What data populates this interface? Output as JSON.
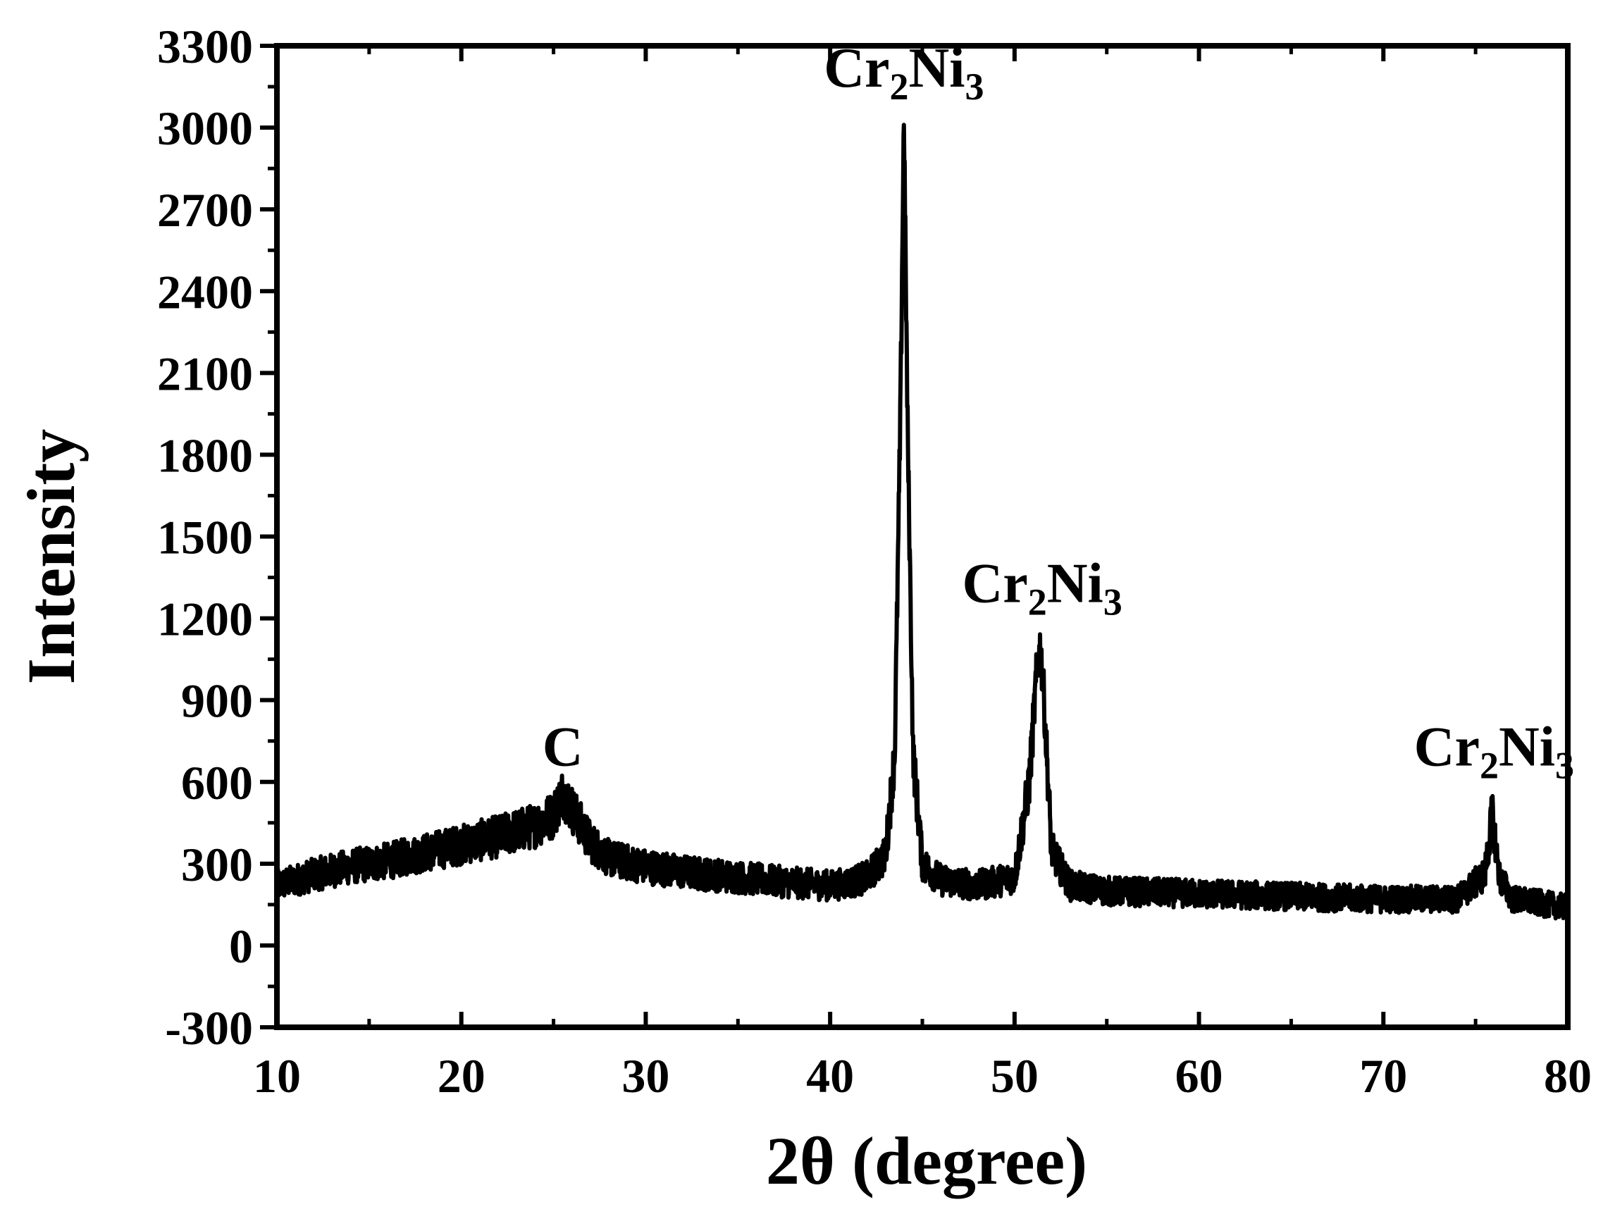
{
  "chart_data": {
    "type": "line",
    "title": "",
    "xlabel": "2θ (degree)",
    "ylabel": "Intensity",
    "xlim": [
      10,
      80
    ],
    "ylim": [
      -300,
      3300
    ],
    "x_ticks": [
      10,
      20,
      30,
      40,
      50,
      60,
      70,
      80
    ],
    "y_ticks": [
      -300,
      0,
      300,
      600,
      900,
      1200,
      1500,
      1800,
      2100,
      2400,
      2700,
      3000,
      3300
    ],
    "grid": false,
    "legend": "none",
    "line_color": "#000000",
    "series": [
      {
        "x": [
          10,
          12,
          14,
          16,
          18,
          20,
          22,
          23,
          24,
          25,
          25.5,
          26,
          27,
          28,
          30,
          32,
          35,
          38,
          40,
          41,
          42,
          43,
          43.5,
          43.8,
          44,
          44.2,
          44.5,
          45,
          46,
          48,
          50,
          50.8,
          51.2,
          51.4,
          51.6,
          52,
          53,
          55,
          60,
          65,
          70,
          74,
          75.5,
          75.9,
          76.3,
          77,
          78,
          80
        ],
        "y": [
          220,
          260,
          290,
          310,
          340,
          370,
          400,
          420,
          440,
          480,
          560,
          500,
          380,
          320,
          290,
          270,
          250,
          230,
          220,
          230,
          250,
          330,
          700,
          1900,
          3050,
          1900,
          700,
          300,
          240,
          220,
          250,
          600,
          1000,
          1100,
          900,
          350,
          220,
          200,
          190,
          180,
          170,
          170,
          260,
          480,
          250,
          170,
          160,
          140
        ]
      }
    ],
    "annotations": [
      {
        "text": "C",
        "x": 25.5,
        "y": 660
      },
      {
        "main": "Cr",
        "sub1": "2",
        "main2": "Ni",
        "sub2": "3",
        "x": 44,
        "y": 3150
      },
      {
        "main": "Cr",
        "sub1": "2",
        "main2": "Ni",
        "sub2": "3",
        "x": 51.5,
        "y": 1260
      },
      {
        "main": "Cr",
        "sub1": "2",
        "main2": "Ni",
        "sub2": "3",
        "x": 76,
        "y": 660
      }
    ]
  }
}
